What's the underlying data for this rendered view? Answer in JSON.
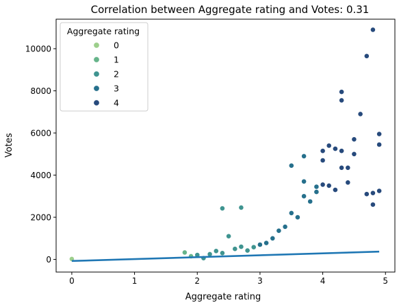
{
  "chart_data": {
    "type": "scatter",
    "title": "Correlation between Aggregate rating and Votes: 0.31",
    "xlabel": "Aggregate rating",
    "ylabel": "Votes",
    "xlim": [
      -0.25,
      5.15
    ],
    "ylim": [
      -600,
      11400
    ],
    "xticks": [
      0,
      1,
      2,
      3,
      4,
      5
    ],
    "yticks": [
      0,
      2000,
      4000,
      6000,
      8000,
      10000
    ],
    "legend": {
      "title": "Aggregate rating",
      "placement": "top-left",
      "entries": [
        {
          "label": "0",
          "color": "#9dcf8c"
        },
        {
          "label": "1",
          "color": "#66b48a"
        },
        {
          "label": "2",
          "color": "#3f9490"
        },
        {
          "label": "3",
          "color": "#26708c"
        },
        {
          "label": "4",
          "color": "#274a7c"
        }
      ]
    },
    "point_color_scale": [
      "#9dcf8c",
      "#66b48a",
      "#3f9490",
      "#26708c",
      "#274a7c",
      "#2a2f5f"
    ],
    "regression_line": {
      "x": [
        0,
        4.9
      ],
      "y": [
        -75,
        370
      ],
      "color": "#1f77b4"
    },
    "grid": false,
    "points": [
      {
        "x": 0.0,
        "y": 20
      },
      {
        "x": 1.8,
        "y": 330
      },
      {
        "x": 1.9,
        "y": 150
      },
      {
        "x": 2.0,
        "y": 210
      },
      {
        "x": 2.1,
        "y": 60
      },
      {
        "x": 2.2,
        "y": 250
      },
      {
        "x": 2.3,
        "y": 400
      },
      {
        "x": 2.4,
        "y": 300
      },
      {
        "x": 2.4,
        "y": 2420
      },
      {
        "x": 2.5,
        "y": 1100
      },
      {
        "x": 2.6,
        "y": 500
      },
      {
        "x": 2.7,
        "y": 600
      },
      {
        "x": 2.7,
        "y": 2460
      },
      {
        "x": 2.8,
        "y": 420
      },
      {
        "x": 2.9,
        "y": 580
      },
      {
        "x": 3.0,
        "y": 700
      },
      {
        "x": 3.1,
        "y": 780
      },
      {
        "x": 3.2,
        "y": 1000
      },
      {
        "x": 3.3,
        "y": 1360
      },
      {
        "x": 3.4,
        "y": 1550
      },
      {
        "x": 3.5,
        "y": 2200
      },
      {
        "x": 3.5,
        "y": 4450
      },
      {
        "x": 3.6,
        "y": 2000
      },
      {
        "x": 3.7,
        "y": 3000
      },
      {
        "x": 3.7,
        "y": 3700
      },
      {
        "x": 3.7,
        "y": 4900
      },
      {
        "x": 3.8,
        "y": 2750
      },
      {
        "x": 3.9,
        "y": 3200
      },
      {
        "x": 3.9,
        "y": 3450
      },
      {
        "x": 4.0,
        "y": 3550
      },
      {
        "x": 4.0,
        "y": 4700
      },
      {
        "x": 4.0,
        "y": 5150
      },
      {
        "x": 4.1,
        "y": 3500
      },
      {
        "x": 4.1,
        "y": 5400
      },
      {
        "x": 4.2,
        "y": 3300
      },
      {
        "x": 4.2,
        "y": 5250
      },
      {
        "x": 4.3,
        "y": 4350
      },
      {
        "x": 4.3,
        "y": 5150
      },
      {
        "x": 4.3,
        "y": 7550
      },
      {
        "x": 4.3,
        "y": 7950
      },
      {
        "x": 4.4,
        "y": 3650
      },
      {
        "x": 4.4,
        "y": 4350
      },
      {
        "x": 4.5,
        "y": 5000
      },
      {
        "x": 4.5,
        "y": 5700
      },
      {
        "x": 4.6,
        "y": 6900
      },
      {
        "x": 4.7,
        "y": 3100
      },
      {
        "x": 4.7,
        "y": 9650
      },
      {
        "x": 4.8,
        "y": 2600
      },
      {
        "x": 4.8,
        "y": 3150
      },
      {
        "x": 4.8,
        "y": 10900
      },
      {
        "x": 4.9,
        "y": 3250
      },
      {
        "x": 4.9,
        "y": 5450
      },
      {
        "x": 4.9,
        "y": 5950
      }
    ]
  }
}
